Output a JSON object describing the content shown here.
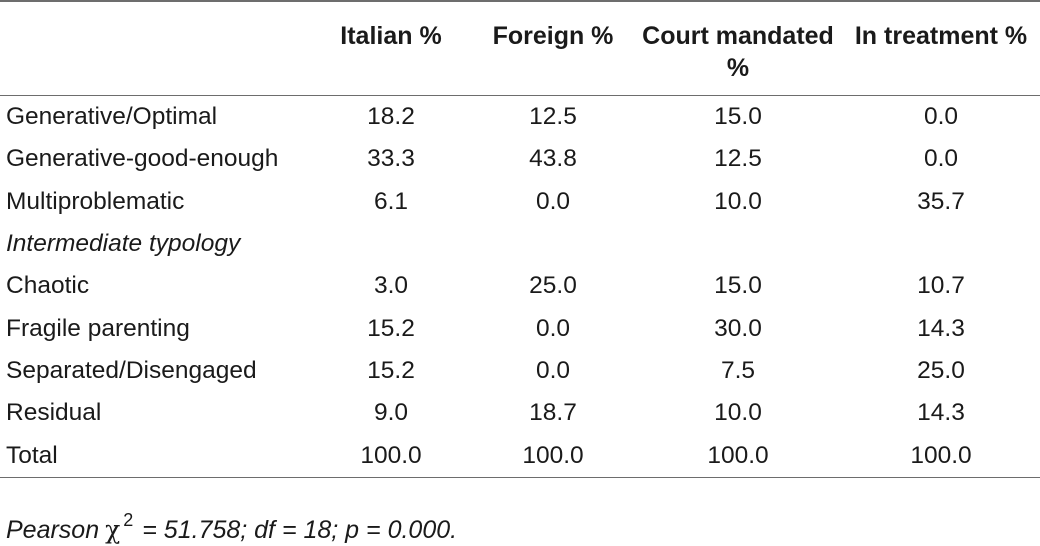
{
  "table": {
    "columns": [
      "",
      "Italian %",
      "Foreign %",
      "Court mandated %",
      "In treatment %"
    ],
    "rows": [
      {
        "label": "Generative/Optimal",
        "values": [
          "18.2",
          "12.5",
          "15.0",
          "0.0"
        ]
      },
      {
        "label": "Generative-good-enough",
        "values": [
          "33.3",
          "43.8",
          "12.5",
          "0.0"
        ]
      },
      {
        "label": "Multiproblematic",
        "values": [
          "6.1",
          "0.0",
          "10.0",
          "35.7"
        ]
      },
      {
        "label": "Intermediate typology",
        "values": [
          "",
          "",
          "",
          ""
        ]
      },
      {
        "label": "Chaotic",
        "values": [
          "3.0",
          "25.0",
          "15.0",
          "10.7"
        ]
      },
      {
        "label": "Fragile parenting",
        "values": [
          "15.2",
          "0.0",
          "30.0",
          "14.3"
        ]
      },
      {
        "label": "Separated/Disengaged",
        "values": [
          "15.2",
          "0.0",
          "7.5",
          "25.0"
        ]
      },
      {
        "label": "Residual",
        "values": [
          "9.0",
          "18.7",
          "10.0",
          "14.3"
        ]
      },
      {
        "label": "Total",
        "values": [
          "100.0",
          "100.0",
          "100.0",
          "100.0"
        ]
      }
    ]
  },
  "footnote": {
    "prefix": "Pearson",
    "symbol": "χ",
    "exponent": "2",
    "suffix": " = 51.758; df = 18; p = 0.000."
  }
}
